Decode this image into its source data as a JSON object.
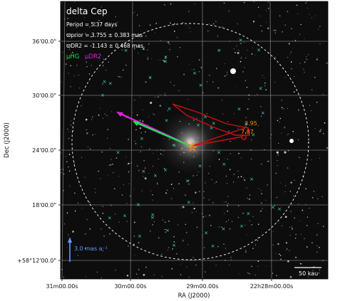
{
  "chart_data": {
    "type": "scatter",
    "title": "delta Cep",
    "xlabel": "RA (J2000)",
    "ylabel": "Dec (J2000)",
    "x_ticks": [
      "31m00.00s",
      "30m00.00s",
      "29m00.00s",
      "22h28m00.00s"
    ],
    "y_ticks": [
      "36'00.0\"",
      "30'00.0\"",
      "24'00.0\"",
      "18'00.0\"",
      "+58°12'00.0\""
    ],
    "info": {
      "period": "Period =   5.37 days",
      "plx_prior": "ϖprior = 3.755 ± 0.383 mas",
      "plx_dr2": "ϖDR2 = -1.143 ± 0.468 mas",
      "mu_hg": "μHG",
      "mu_dr2": "μDR2"
    },
    "labels": {
      "pm_scale": "3.0 mas a⁻¹",
      "distance_scale": "50 kau",
      "comp_1": "3.95",
      "comp_2": "7.87",
      "target_label": "0.0"
    },
    "colors": {
      "mu_hg": "#22dd55",
      "mu_dr2": "#dd22dd",
      "companion": "#cc1111",
      "target": "#ff8800",
      "field_stars": "#40e0d0",
      "pm_scale": "#6699ff"
    },
    "field_stars": 52,
    "grid": true
  }
}
